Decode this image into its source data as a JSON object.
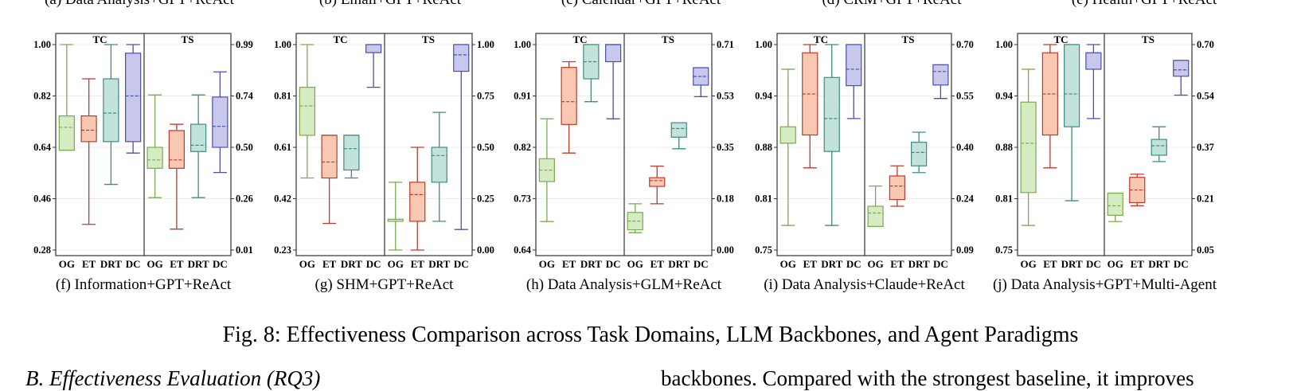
{
  "top_captions": [
    "(a) Data Analysis+GPT+ReAct",
    "(b) Email+GPT+ReAct",
    "(c) Calendar+GPT+ReAct",
    "(d) CRM+GPT+ReAct",
    "(e) Health+GPT+ReAct"
  ],
  "figure_caption": "Fig. 8: Effectiveness Comparison across Task Domains, LLM Backbones, and Agent Paradigms",
  "section_heading": "B.  Effectiveness Evaluation (RQ3)",
  "body_text": "backbones. Compared with the strongest baseline, it improves",
  "colors": {
    "OG": {
      "fill": "#d5ecc2",
      "stroke": "#7aab4f"
    },
    "ET": {
      "fill": "#f8c8b2",
      "stroke": "#c0392b"
    },
    "DRT": {
      "fill": "#c4e2dc",
      "stroke": "#3f8b7e"
    },
    "DC": {
      "fill": "#c7c8ec",
      "stroke": "#4b4fb0"
    }
  },
  "chart_data": [
    {
      "type": "box",
      "caption": "(f) Information+GPT+ReAct",
      "panels": [
        "TC",
        "TS"
      ],
      "categories": [
        "OG",
        "ET",
        "DRT",
        "DC"
      ],
      "left_ticks": [
        "1.00",
        "0.82",
        "0.64",
        "0.46",
        "0.28"
      ],
      "left_ylim": [
        0.28,
        1.0
      ],
      "right_ticks": [
        "0.99",
        "0.74",
        "0.50",
        "0.26",
        "0.01"
      ],
      "right_ylim": [
        0.01,
        0.99
      ],
      "TC": [
        {
          "min": 0.63,
          "q1": 0.63,
          "median": 0.71,
          "q3": 0.75,
          "max": 1.0
        },
        {
          "min": 0.37,
          "q1": 0.66,
          "median": 0.7,
          "q3": 0.75,
          "max": 0.88
        },
        {
          "min": 0.51,
          "q1": 0.66,
          "median": 0.76,
          "q3": 0.88,
          "max": 1.0
        },
        {
          "min": 0.62,
          "q1": 0.66,
          "median": 0.82,
          "q3": 0.97,
          "max": 1.0
        }
      ],
      "TS": [
        {
          "min": 0.26,
          "q1": 0.4,
          "median": 0.44,
          "q3": 0.5,
          "max": 0.75
        },
        {
          "min": 0.11,
          "q1": 0.4,
          "median": 0.44,
          "q3": 0.58,
          "max": 0.61
        },
        {
          "min": 0.26,
          "q1": 0.48,
          "median": 0.51,
          "q3": 0.61,
          "max": 0.75
        },
        {
          "min": 0.38,
          "q1": 0.5,
          "median": 0.6,
          "q3": 0.74,
          "max": 0.86
        }
      ]
    },
    {
      "type": "box",
      "caption": "(g) SHM+GPT+ReAct",
      "panels": [
        "TC",
        "TS"
      ],
      "categories": [
        "OG",
        "ET",
        "DRT",
        "DC"
      ],
      "left_ticks": [
        "1.00",
        "0.81",
        "0.61",
        "0.42",
        "0.23"
      ],
      "left_ylim": [
        0.23,
        1.0
      ],
      "right_ticks": [
        "1.00",
        "0.75",
        "0.50",
        "0.25",
        "0.00"
      ],
      "right_ylim": [
        0.0,
        1.0
      ],
      "TC": [
        {
          "min": 0.5,
          "q1": 0.66,
          "median": 0.77,
          "q3": 0.84,
          "max": 1.0
        },
        {
          "min": 0.33,
          "q1": 0.5,
          "median": 0.56,
          "q3": 0.66,
          "max": 0.66
        },
        {
          "min": 0.5,
          "q1": 0.53,
          "median": 0.61,
          "q3": 0.66,
          "max": 0.66
        },
        {
          "min": 0.84,
          "q1": 0.97,
          "median": 0.97,
          "q3": 1.0,
          "max": 1.0
        }
      ],
      "TS": [
        {
          "min": 0.0,
          "q1": 0.14,
          "median": 0.15,
          "q3": 0.15,
          "max": 0.33
        },
        {
          "min": 0.0,
          "q1": 0.14,
          "median": 0.27,
          "q3": 0.33,
          "max": 0.5
        },
        {
          "min": 0.14,
          "q1": 0.33,
          "median": 0.46,
          "q3": 0.5,
          "max": 0.67
        },
        {
          "min": 0.1,
          "q1": 0.87,
          "median": 0.95,
          "q3": 1.0,
          "max": 1.0
        }
      ]
    },
    {
      "type": "box",
      "caption": "(h) Data Analysis+GLM+ReAct",
      "panels": [
        "TC",
        "TS"
      ],
      "categories": [
        "OG",
        "ET",
        "DRT",
        "DC"
      ],
      "left_ticks": [
        "1.00",
        "0.91",
        "0.82",
        "0.73",
        "0.64"
      ],
      "left_ylim": [
        0.64,
        1.0
      ],
      "right_ticks": [
        "0.71",
        "0.53",
        "0.35",
        "0.18",
        "0.00"
      ],
      "right_ylim": [
        0.0,
        0.71
      ],
      "TC": [
        {
          "min": 0.69,
          "q1": 0.76,
          "median": 0.78,
          "q3": 0.8,
          "max": 0.87
        },
        {
          "min": 0.81,
          "q1": 0.86,
          "median": 0.9,
          "q3": 0.96,
          "max": 0.97
        },
        {
          "min": 0.9,
          "q1": 0.94,
          "median": 0.97,
          "q3": 1.0,
          "max": 1.0
        },
        {
          "min": 0.87,
          "q1": 0.97,
          "median": 1.0,
          "q3": 1.0,
          "max": 1.0
        }
      ],
      "TS": [
        {
          "min": 0.06,
          "q1": 0.07,
          "median": 0.1,
          "q3": 0.13,
          "max": 0.16
        },
        {
          "min": 0.16,
          "q1": 0.22,
          "median": 0.24,
          "q3": 0.25,
          "max": 0.29
        },
        {
          "min": 0.35,
          "q1": 0.39,
          "median": 0.42,
          "q3": 0.44,
          "max": 0.44
        },
        {
          "min": 0.53,
          "q1": 0.57,
          "median": 0.6,
          "q3": 0.63,
          "max": 0.63
        }
      ]
    },
    {
      "type": "box",
      "caption": "(i) Data Analysis+Claude+ReAct",
      "panels": [
        "TC",
        "TS"
      ],
      "categories": [
        "OG",
        "ET",
        "DRT",
        "DC"
      ],
      "left_ticks": [
        "1.00",
        "0.94",
        "0.88",
        "0.81",
        "0.75"
      ],
      "left_ylim": [
        0.75,
        1.0
      ],
      "right_ticks": [
        "0.70",
        "0.55",
        "0.40",
        "0.24",
        "0.09"
      ],
      "right_ylim": [
        0.09,
        0.7
      ],
      "TC": [
        {
          "min": 0.78,
          "q1": 0.88,
          "median": 0.88,
          "q3": 0.9,
          "max": 0.97
        },
        {
          "min": 0.85,
          "q1": 0.89,
          "median": 0.94,
          "q3": 0.99,
          "max": 1.0
        },
        {
          "min": 0.78,
          "q1": 0.87,
          "median": 0.91,
          "q3": 0.96,
          "max": 1.0
        },
        {
          "min": 0.91,
          "q1": 0.95,
          "median": 0.97,
          "q3": 1.0,
          "max": 1.0
        }
      ],
      "TS": [
        {
          "min": 0.16,
          "q1": 0.16,
          "median": 0.2,
          "q3": 0.22,
          "max": 0.28
        },
        {
          "min": 0.22,
          "q1": 0.24,
          "median": 0.28,
          "q3": 0.31,
          "max": 0.34
        },
        {
          "min": 0.32,
          "q1": 0.34,
          "median": 0.38,
          "q3": 0.41,
          "max": 0.44
        },
        {
          "min": 0.54,
          "q1": 0.58,
          "median": 0.62,
          "q3": 0.64,
          "max": 0.64
        }
      ]
    },
    {
      "type": "box",
      "caption": "(j) Data Analysis+GPT+Multi-Agent",
      "panels": [
        "TC",
        "TS"
      ],
      "categories": [
        "OG",
        "ET",
        "DRT",
        "DC"
      ],
      "left_ticks": [
        "1.00",
        "0.94",
        "0.88",
        "0.81",
        "0.75"
      ],
      "left_ylim": [
        0.75,
        1.0
      ],
      "right_ticks": [
        "0.70",
        "0.54",
        "0.37",
        "0.21",
        "0.05"
      ],
      "right_ylim": [
        0.05,
        0.7
      ],
      "TC": [
        {
          "min": 0.78,
          "q1": 0.82,
          "median": 0.88,
          "q3": 0.93,
          "max": 0.97
        },
        {
          "min": 0.85,
          "q1": 0.89,
          "median": 0.94,
          "q3": 0.99,
          "max": 1.0
        },
        {
          "min": 0.81,
          "q1": 0.9,
          "median": 0.94,
          "q3": 1.0,
          "max": 1.0
        },
        {
          "min": 0.91,
          "q1": 0.97,
          "median": 0.99,
          "q3": 0.99,
          "max": 1.0
        }
      ],
      "TS": [
        {
          "min": 0.14,
          "q1": 0.16,
          "median": 0.19,
          "q3": 0.23,
          "max": 0.23
        },
        {
          "min": 0.19,
          "q1": 0.2,
          "median": 0.24,
          "q3": 0.28,
          "max": 0.29
        },
        {
          "min": 0.33,
          "q1": 0.35,
          "median": 0.38,
          "q3": 0.4,
          "max": 0.44
        },
        {
          "min": 0.54,
          "q1": 0.6,
          "median": 0.62,
          "q3": 0.65,
          "max": 0.65
        }
      ]
    }
  ]
}
